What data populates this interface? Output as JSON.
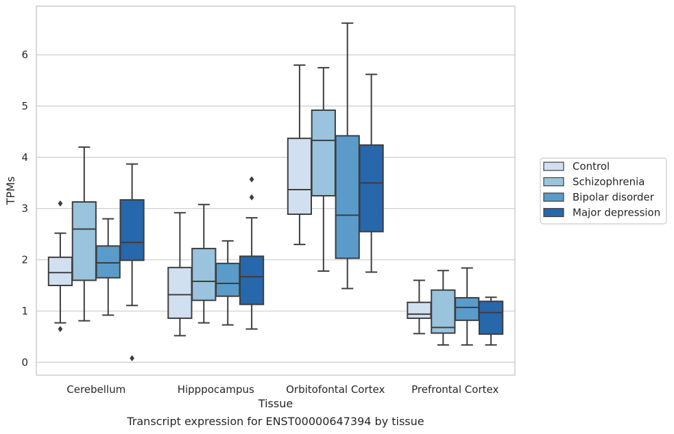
{
  "chart_data": {
    "type": "box",
    "xlabel": "Tissue",
    "ylabel": "TPMs",
    "caption": "Transcript expression for ENST00000647394 by tissue",
    "ylim": [
      -0.25,
      6.95
    ],
    "yticks": [
      0,
      1,
      2,
      3,
      4,
      5,
      6
    ],
    "grid": "horizontal",
    "legend_position": "outside-right",
    "categories": [
      "Cerebellum",
      "Hipppocampus",
      "Orbitofontal Cortex",
      "Prefrontal Cortex"
    ],
    "series": [
      {
        "name": "Control",
        "color": "#d1e0f0",
        "boxes": [
          {
            "whislo": 0.77,
            "q1": 1.5,
            "med": 1.75,
            "q3": 2.05,
            "whishi": 2.52,
            "fliers": [
              0.65,
              3.1
            ]
          },
          {
            "whislo": 0.52,
            "q1": 0.86,
            "med": 1.32,
            "q3": 1.85,
            "whishi": 2.92,
            "fliers": []
          },
          {
            "whislo": 2.3,
            "q1": 2.89,
            "med": 3.37,
            "q3": 4.37,
            "whishi": 5.8,
            "fliers": []
          },
          {
            "whislo": 0.56,
            "q1": 0.86,
            "med": 0.94,
            "q3": 1.17,
            "whishi": 1.6,
            "fliers": []
          }
        ]
      },
      {
        "name": "Schizophrenia",
        "color": "#9ac3dd",
        "boxes": [
          {
            "whislo": 0.81,
            "q1": 1.6,
            "med": 2.6,
            "q3": 3.13,
            "whishi": 4.2,
            "fliers": []
          },
          {
            "whislo": 0.77,
            "q1": 1.21,
            "med": 1.58,
            "q3": 2.22,
            "whishi": 3.08,
            "fliers": []
          },
          {
            "whislo": 1.78,
            "q1": 3.25,
            "med": 4.33,
            "q3": 4.92,
            "whishi": 5.75,
            "fliers": []
          },
          {
            "whislo": 0.34,
            "q1": 0.57,
            "med": 0.68,
            "q3": 1.41,
            "whishi": 1.79,
            "fliers": []
          }
        ]
      },
      {
        "name": "Bipolar disorder",
        "color": "#5a9bca",
        "boxes": [
          {
            "whislo": 0.92,
            "q1": 1.65,
            "med": 1.94,
            "q3": 2.27,
            "whishi": 2.8,
            "fliers": []
          },
          {
            "whislo": 0.73,
            "q1": 1.29,
            "med": 1.54,
            "q3": 1.93,
            "whishi": 2.37,
            "fliers": []
          },
          {
            "whislo": 1.44,
            "q1": 2.03,
            "med": 2.87,
            "q3": 4.42,
            "whishi": 6.62,
            "fliers": []
          },
          {
            "whislo": 0.34,
            "q1": 0.82,
            "med": 1.07,
            "q3": 1.26,
            "whishi": 1.84,
            "fliers": []
          }
        ]
      },
      {
        "name": "Major depression",
        "color": "#2767ab",
        "boxes": [
          {
            "whislo": 1.11,
            "q1": 1.99,
            "med": 2.34,
            "q3": 3.17,
            "whishi": 3.87,
            "fliers": [
              0.08
            ]
          },
          {
            "whislo": 0.65,
            "q1": 1.13,
            "med": 1.67,
            "q3": 2.07,
            "whishi": 2.82,
            "fliers": [
              3.22,
              3.57
            ]
          },
          {
            "whislo": 1.76,
            "q1": 2.55,
            "med": 3.5,
            "q3": 4.24,
            "whishi": 5.62,
            "fliers": []
          },
          {
            "whislo": 0.34,
            "q1": 0.55,
            "med": 0.97,
            "q3": 1.19,
            "whishi": 1.27,
            "fliers": []
          }
        ]
      }
    ]
  }
}
